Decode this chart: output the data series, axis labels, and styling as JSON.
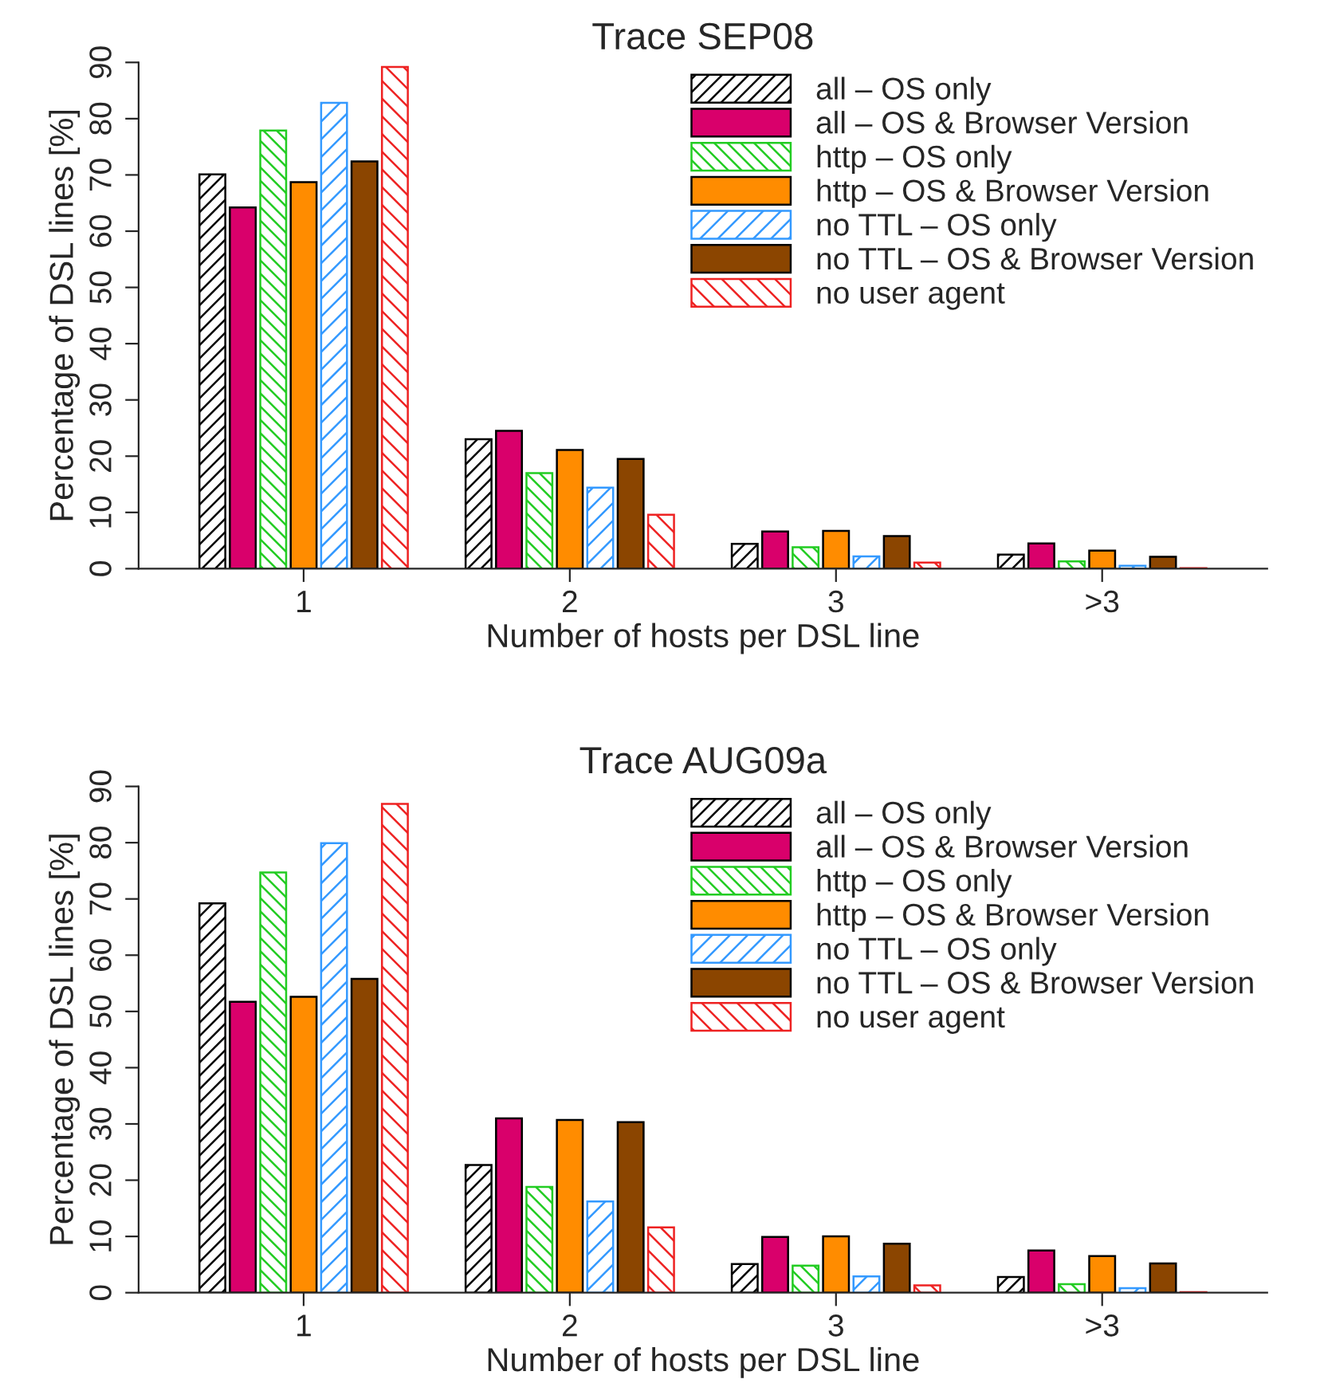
{
  "chart_data": [
    {
      "type": "bar",
      "title": "Trace SEP08",
      "xlabel": "Number of hosts per DSL line",
      "ylabel": "Percentage of DSL lines [%]",
      "categories": [
        "1",
        "2",
        "3",
        ">3"
      ],
      "ylim": [
        0,
        90
      ],
      "yticks": [
        0,
        10,
        20,
        30,
        40,
        50,
        60,
        70,
        80,
        90
      ],
      "legend": "top right",
      "series": [
        {
          "name": "all – OS only",
          "color": "#000000",
          "values": [
            70.1,
            23.0,
            4.4,
            2.5
          ]
        },
        {
          "name": "all – OS & Browser Version",
          "color": "#d9006b",
          "values": [
            64.2,
            24.5,
            6.6,
            4.5
          ]
        },
        {
          "name": "http – OS only",
          "color": "#22cc22",
          "values": [
            77.9,
            17.0,
            3.8,
            1.3
          ]
        },
        {
          "name": "http – OS & Browser Version",
          "color": "#ff8c00",
          "values": [
            68.7,
            21.1,
            6.7,
            3.2
          ]
        },
        {
          "name": "no TTL – OS only",
          "color": "#3399ff",
          "values": [
            82.8,
            14.4,
            2.2,
            0.5
          ]
        },
        {
          "name": "no TTL – OS & Browser Version",
          "color": "#8b4500",
          "values": [
            72.4,
            19.5,
            5.8,
            2.1
          ]
        },
        {
          "name": "no user agent",
          "color": "#ee2222",
          "values": [
            89.2,
            9.6,
            1.1,
            0.1
          ]
        }
      ]
    },
    {
      "type": "bar",
      "title": "Trace AUG09a",
      "xlabel": "Number of hosts per DSL line",
      "ylabel": "Percentage of DSL lines [%]",
      "categories": [
        "1",
        "2",
        "3",
        ">3"
      ],
      "ylim": [
        0,
        90
      ],
      "yticks": [
        0,
        10,
        20,
        30,
        40,
        50,
        60,
        70,
        80,
        90
      ],
      "legend": "top right",
      "series": [
        {
          "name": "all – OS only",
          "color": "#000000",
          "values": [
            69.2,
            22.7,
            5.1,
            2.8
          ]
        },
        {
          "name": "all – OS & Browser Version",
          "color": "#d9006b",
          "values": [
            51.7,
            31.0,
            9.9,
            7.5
          ]
        },
        {
          "name": "http – OS only",
          "color": "#22cc22",
          "values": [
            74.7,
            18.8,
            4.8,
            1.5
          ]
        },
        {
          "name": "http – OS & Browser Version",
          "color": "#ff8c00",
          "values": [
            52.6,
            30.7,
            10.0,
            6.5
          ]
        },
        {
          "name": "no TTL – OS only",
          "color": "#3399ff",
          "values": [
            79.9,
            16.2,
            2.9,
            0.8
          ]
        },
        {
          "name": "no TTL – OS & Browser Version",
          "color": "#8b4500",
          "values": [
            55.8,
            30.3,
            8.7,
            5.2
          ]
        },
        {
          "name": "no user agent",
          "color": "#ee2222",
          "values": [
            86.9,
            11.6,
            1.3,
            0.1
          ]
        }
      ]
    }
  ]
}
